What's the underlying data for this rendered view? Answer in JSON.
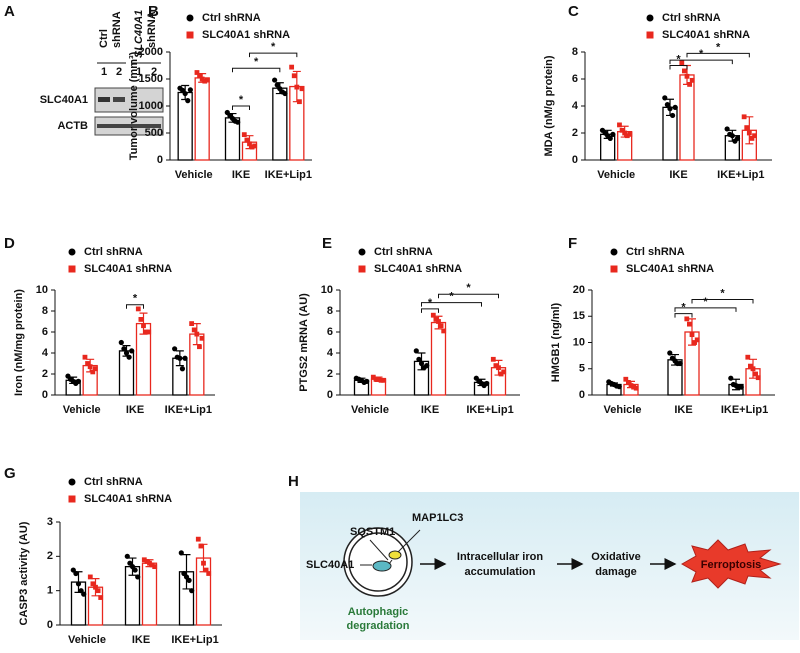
{
  "panel_a": {
    "letter": "A",
    "group_labels": [
      [
        "Ctrl",
        "shRNA"
      ],
      [
        "SLC40A1",
        "shRNA"
      ]
    ],
    "lanes": [
      "1",
      "2",
      "1",
      "2"
    ],
    "rows": [
      "SLC40A1",
      "ACTB"
    ]
  },
  "panel_h": {
    "letter": "H",
    "labels": {
      "sqstm1": "SQSTM1",
      "map1lc3": "MAP1LC3",
      "slc40a1": "SLC40A1",
      "autophagic": [
        "Autophagic",
        "degradation"
      ],
      "iron": [
        "Intracellular iron",
        "accumulation"
      ],
      "oxidative": [
        "Oxidative",
        "damage"
      ],
      "ferroptosis": "Ferroptosis"
    }
  },
  "chart_data": [
    {
      "type": "bar",
      "panel": "B",
      "ylabel": "Tumor volume (mm³)",
      "categories": [
        "Vehicle",
        "IKE",
        "IKE+Lip1"
      ],
      "ylim": [
        0,
        2000
      ],
      "yticks": [
        0,
        500,
        1000,
        1500,
        2000
      ],
      "series": [
        {
          "name": "Ctrl shRNA",
          "color": "#000000",
          "values": [
            1250,
            780,
            1330
          ],
          "errors": [
            130,
            80,
            100
          ],
          "points": [
            [
              1330,
              1290,
              1230,
              1100,
              1300
            ],
            [
              880,
              820,
              770,
              720,
              700
            ],
            [
              1480,
              1390,
              1320,
              1260,
              1230
            ]
          ]
        },
        {
          "name": "SLC40A1 shRNA",
          "color": "#e8281e",
          "values": [
            1520,
            330,
            1360
          ],
          "errors": [
            80,
            120,
            280
          ],
          "points": [
            [
              1620,
              1560,
              1500,
              1460,
              1480
            ],
            [
              470,
              370,
              300,
              240,
              260
            ],
            [
              1720,
              1560,
              1350,
              1080,
              1320
            ]
          ]
        }
      ],
      "significance": [
        {
          "label": "*",
          "from": [
            0,
            1
          ],
          "to": [
            1,
            1
          ],
          "y": 1000
        },
        {
          "label": "*",
          "from": [
            0,
            1
          ],
          "to": [
            0,
            2
          ],
          "y": 1700
        },
        {
          "label": "*",
          "from": [
            1,
            1
          ],
          "to": [
            1,
            2
          ],
          "y": 1980
        }
      ]
    },
    {
      "type": "bar",
      "panel": "C",
      "ylabel": "MDA (nM/g protein)",
      "categories": [
        "Vehicle",
        "IKE",
        "IKE+Lip1"
      ],
      "ylim": [
        0,
        8
      ],
      "yticks": [
        0,
        2,
        4,
        6,
        8
      ],
      "series": [
        {
          "name": "Ctrl shRNA",
          "color": "#000000",
          "values": [
            1.9,
            3.9,
            1.8
          ],
          "errors": [
            0.3,
            0.6,
            0.4
          ],
          "points": [
            [
              2.2,
              2.0,
              1.8,
              1.6,
              1.9
            ],
            [
              4.6,
              4.1,
              3.8,
              3.3,
              3.9
            ],
            [
              2.3,
              1.9,
              1.8,
              1.4,
              1.6
            ]
          ]
        },
        {
          "name": "SLC40A1 shRNA",
          "color": "#e8281e",
          "values": [
            2.1,
            6.3,
            2.2
          ],
          "errors": [
            0.4,
            0.7,
            1.0
          ],
          "points": [
            [
              2.6,
              2.2,
              2.0,
              1.8,
              1.9
            ],
            [
              7.2,
              6.6,
              6.2,
              5.6,
              5.9
            ],
            [
              3.2,
              2.4,
              2.0,
              1.6,
              1.8
            ]
          ]
        }
      ],
      "significance": [
        {
          "label": "*",
          "from": [
            0,
            1
          ],
          "to": [
            1,
            1
          ],
          "y": 7.0
        },
        {
          "label": "*",
          "from": [
            0,
            1
          ],
          "to": [
            0,
            2
          ],
          "y": 7.4
        },
        {
          "label": "*",
          "from": [
            1,
            1
          ],
          "to": [
            1,
            2
          ],
          "y": 7.9
        }
      ]
    },
    {
      "type": "bar",
      "panel": "D",
      "ylabel": "Iron (nM/mg protein)",
      "categories": [
        "Vehicle",
        "IKE",
        "IKE+Lip1"
      ],
      "ylim": [
        0,
        10
      ],
      "yticks": [
        0,
        2,
        4,
        6,
        8,
        10
      ],
      "series": [
        {
          "name": "Ctrl shRNA",
          "color": "#000000",
          "values": [
            1.4,
            4.2,
            3.5
          ],
          "errors": [
            0.3,
            0.5,
            0.7
          ],
          "points": [
            [
              1.8,
              1.5,
              1.3,
              1.1,
              1.3
            ],
            [
              5.0,
              4.4,
              4.0,
              3.6,
              4.2
            ],
            [
              4.4,
              3.6,
              3.5,
              2.5,
              3.5
            ]
          ]
        },
        {
          "name": "SLC40A1 shRNA",
          "color": "#e8281e",
          "values": [
            2.8,
            6.8,
            5.8
          ],
          "errors": [
            0.6,
            1.0,
            1.0
          ],
          "points": [
            [
              3.6,
              3.0,
              2.7,
              2.2,
              2.5
            ],
            [
              8.2,
              7.2,
              6.6,
              6.0,
              6.0
            ],
            [
              6.8,
              6.2,
              5.8,
              4.6,
              5.4
            ]
          ]
        }
      ],
      "significance": [
        {
          "label": "*",
          "from": [
            0,
            1
          ],
          "to": [
            1,
            1
          ],
          "y": 8.6
        }
      ]
    },
    {
      "type": "bar",
      "panel": "E",
      "ylabel": "PTGS2 mRNA (AU)",
      "categories": [
        "Vehicle",
        "IKE",
        "IKE+Lip1"
      ],
      "ylim": [
        0,
        10
      ],
      "yticks": [
        0,
        2,
        4,
        6,
        8,
        10
      ],
      "series": [
        {
          "name": "Ctrl shRNA",
          "color": "#000000",
          "values": [
            1.4,
            3.2,
            1.2
          ],
          "errors": [
            0.2,
            0.8,
            0.3
          ],
          "points": [
            [
              1.6,
              1.5,
              1.4,
              1.2,
              1.3
            ],
            [
              4.2,
              3.4,
              3.0,
              2.6,
              2.8
            ],
            [
              1.6,
              1.3,
              1.1,
              0.9,
              1.1
            ]
          ]
        },
        {
          "name": "SLC40A1 shRNA",
          "color": "#e8281e",
          "values": [
            1.5,
            6.9,
            2.6
          ],
          "errors": [
            0.2,
            0.6,
            0.7
          ],
          "points": [
            [
              1.7,
              1.5,
              1.5,
              1.4,
              1.4
            ],
            [
              7.6,
              7.2,
              7.0,
              6.6,
              6.1
            ],
            [
              3.4,
              2.8,
              2.6,
              2.0,
              2.2
            ]
          ]
        }
      ],
      "significance": [
        {
          "label": "*",
          "from": [
            0,
            1
          ],
          "to": [
            1,
            1
          ],
          "y": 8.2
        },
        {
          "label": "*",
          "from": [
            0,
            1
          ],
          "to": [
            0,
            2
          ],
          "y": 8.8
        },
        {
          "label": "*",
          "from": [
            1,
            1
          ],
          "to": [
            1,
            2
          ],
          "y": 9.6
        }
      ]
    },
    {
      "type": "bar",
      "panel": "F",
      "ylabel": "HMGB1 (ng/ml)",
      "categories": [
        "Vehicle",
        "IKE",
        "IKE+Lip1"
      ],
      "ylim": [
        0,
        20
      ],
      "yticks": [
        0,
        5,
        10,
        15,
        20
      ],
      "series": [
        {
          "name": "Ctrl shRNA",
          "color": "#000000",
          "values": [
            2.0,
            6.7,
            2.0
          ],
          "errors": [
            0.3,
            1.0,
            1.0
          ],
          "points": [
            [
              2.5,
              2.2,
              2.0,
              1.7,
              1.6
            ],
            [
              8.0,
              7.0,
              6.5,
              6.0,
              6.0
            ],
            [
              3.2,
              2.0,
              1.8,
              1.5,
              1.5
            ]
          ]
        },
        {
          "name": "SLC40A1 shRNA",
          "color": "#e8281e",
          "values": [
            2.0,
            12,
            5
          ],
          "errors": [
            0.6,
            2.5,
            1.8
          ],
          "points": [
            [
              3.0,
              2.4,
              1.8,
              1.5,
              1.3
            ],
            [
              14.5,
              13.5,
              11.5,
              10,
              10.5
            ],
            [
              7.2,
              5.5,
              5.0,
              4.0,
              3.3
            ]
          ]
        }
      ],
      "significance": [
        {
          "label": "*",
          "from": [
            0,
            1
          ],
          "to": [
            1,
            1
          ],
          "y": 15.5
        },
        {
          "label": "*",
          "from": [
            0,
            1
          ],
          "to": [
            0,
            2
          ],
          "y": 16.6
        },
        {
          "label": "*",
          "from": [
            1,
            1
          ],
          "to": [
            1,
            2
          ],
          "y": 18.2
        }
      ]
    },
    {
      "type": "bar",
      "panel": "G",
      "ylabel": "CASP3 activity (AU)",
      "categories": [
        "Vehicle",
        "IKE",
        "IKE+Lip1"
      ],
      "ylim": [
        0,
        3
      ],
      "yticks": [
        0,
        1,
        2,
        3
      ],
      "series": [
        {
          "name": "Ctrl shRNA",
          "color": "#000000",
          "values": [
            1.25,
            1.7,
            1.55
          ],
          "errors": [
            0.3,
            0.25,
            0.5
          ],
          "points": [
            [
              1.6,
              1.5,
              1.2,
              1.0,
              0.9
            ],
            [
              2.0,
              1.8,
              1.7,
              1.6,
              1.4
            ],
            [
              2.1,
              1.5,
              1.4,
              1.3,
              1.0
            ]
          ]
        },
        {
          "name": "SLC40A1 shRNA",
          "color": "#e8281e",
          "values": [
            1.1,
            1.8,
            1.95
          ],
          "errors": [
            0.25,
            0.1,
            0.4
          ],
          "points": [
            [
              1.4,
              1.2,
              1.1,
              1.0,
              0.8
            ],
            [
              1.9,
              1.85,
              1.8,
              1.75,
              1.7
            ],
            [
              2.5,
              2.3,
              1.8,
              1.6,
              1.5
            ]
          ]
        }
      ],
      "significance": []
    }
  ]
}
